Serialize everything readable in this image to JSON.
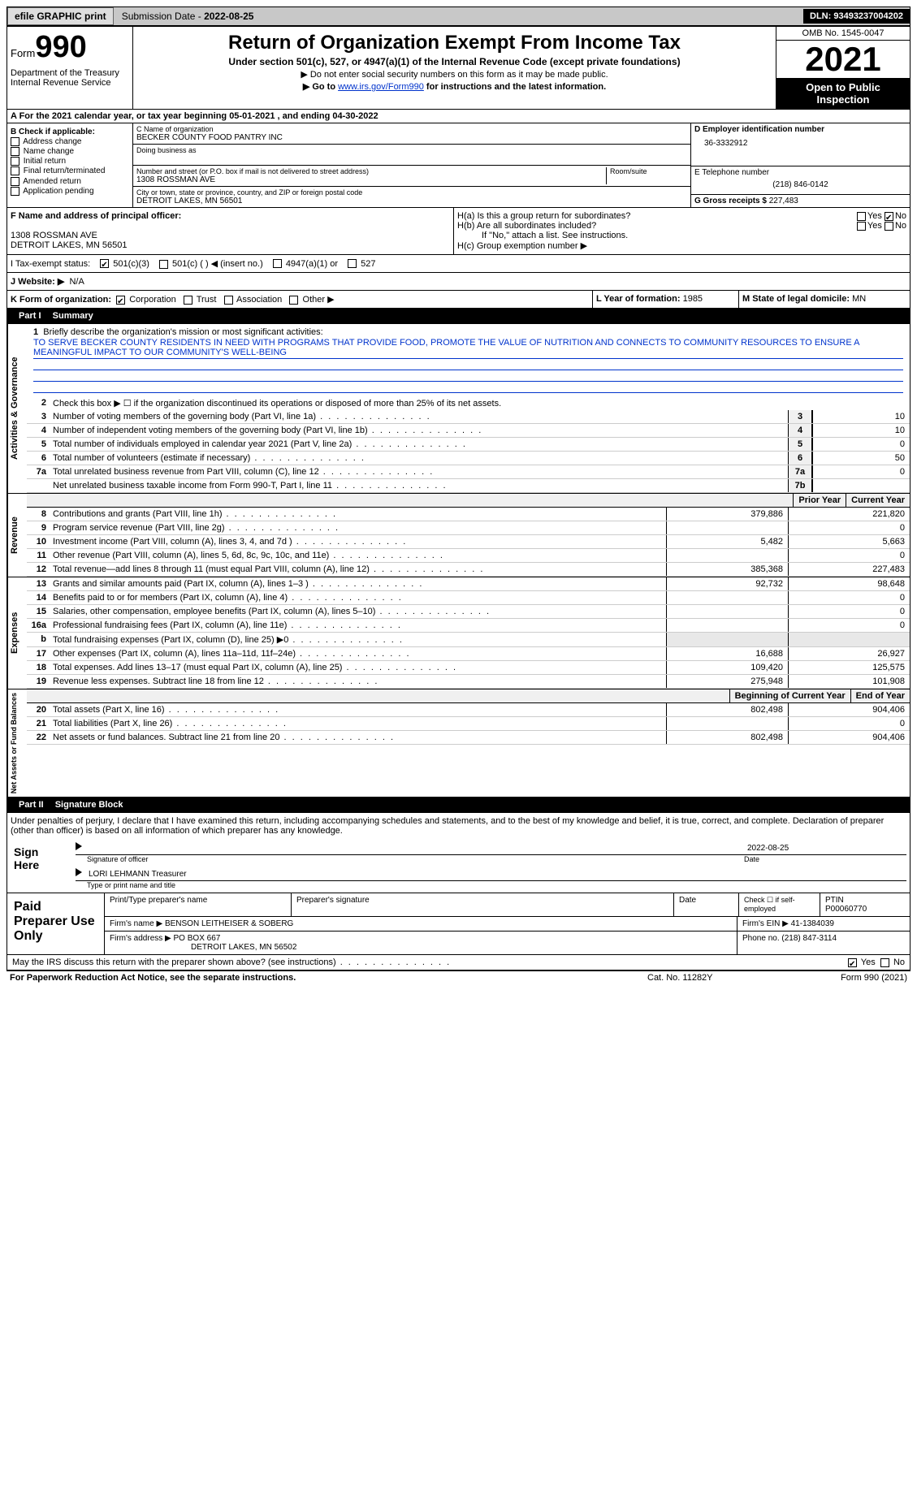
{
  "topbar": {
    "efile": "efile GRAPHIC print",
    "sub_lbl": "Submission Date - ",
    "sub_date": "2022-08-25",
    "dln_lbl": "DLN:",
    "dln": "93493237004202"
  },
  "header": {
    "form_lbl": "Form",
    "form_num": "990",
    "dept": "Department of the Treasury\nInternal Revenue Service",
    "title": "Return of Organization Exempt From Income Tax",
    "sub": "Under section 501(c), 527, or 4947(a)(1) of the Internal Revenue Code (except private foundations)",
    "note1": "▶ Do not enter social security numbers on this form as it may be made public.",
    "note2_pre": "▶ Go to ",
    "note2_link": "www.irs.gov/Form990",
    "note2_post": " for instructions and the latest information.",
    "omb": "OMB No. 1545-0047",
    "year": "2021",
    "inspect": "Open to Public Inspection"
  },
  "rowA": "A For the 2021 calendar year, or tax year beginning 05-01-2021   , and ending 04-30-2022",
  "colB": {
    "hdr": "B Check if applicable:",
    "items": [
      "Address change",
      "Name change",
      "Initial return",
      "Final return/terminated",
      "Amended return",
      "Application pending"
    ]
  },
  "colC": {
    "name_lbl": "C Name of organization",
    "name": "BECKER COUNTY FOOD PANTRY INC",
    "dba_lbl": "Doing business as",
    "addr_lbl": "Number and street (or P.O. box if mail is not delivered to street address)",
    "room_lbl": "Room/suite",
    "addr": "1308 ROSSMAN AVE",
    "city_lbl": "City or town, state or province, country, and ZIP or foreign postal code",
    "city": "DETROIT LAKES, MN  56501"
  },
  "colD": {
    "ein_lbl": "D Employer identification number",
    "ein": "36-3332912",
    "tel_lbl": "E Telephone number",
    "tel": "(218) 846-0142",
    "gross_lbl": "G Gross receipts $",
    "gross": "227,483"
  },
  "rowF": {
    "lbl": "F  Name and address of principal officer:",
    "addr1": "1308 ROSSMAN AVE",
    "addr2": "DETROIT LAKES, MN  56501"
  },
  "rowH": {
    "ha": "H(a)  Is this a group return for subordinates?",
    "hb": "H(b)  Are all subordinates included?",
    "hb_note": "If \"No,\" attach a list. See instructions.",
    "hc": "H(c)  Group exemption number ▶",
    "yes": "Yes",
    "no": "No"
  },
  "taxExempt": {
    "lbl": "I  Tax-exempt status:",
    "c3": "501(c)(3)",
    "c": "501(c) (  ) ◀ (insert no.)",
    "a1": "4947(a)(1) or",
    "527": "527"
  },
  "rowJ": {
    "lbl": "J  Website: ▶",
    "val": "N/A"
  },
  "rowK": {
    "lbl": "K Form of organization:",
    "corp": "Corporation",
    "trust": "Trust",
    "assoc": "Association",
    "other": "Other ▶",
    "year_lbl": "L Year of formation:",
    "year": "1985",
    "state_lbl": "M State of legal domicile:",
    "state": "MN"
  },
  "partI": {
    "hdr_part": "Part I",
    "hdr_title": "Summary",
    "line1_lbl": "Briefly describe the organization's mission or most significant activities:",
    "mission": "TO SERVE BECKER COUNTY RESIDENTS IN NEED WITH PROGRAMS THAT PROVIDE FOOD, PROMOTE THE VALUE OF NUTRITION AND CONNECTS TO COMMUNITY RESOURCES TO ENSURE A MEANINGFUL IMPACT TO OUR COMMUNITY'S WELL-BEING",
    "line2": "Check this box ▶ ☐  if the organization discontinued its operations or disposed of more than 25% of its net assets.",
    "vlabels": {
      "ag": "Activities & Governance",
      "rev": "Revenue",
      "exp": "Expenses",
      "net": "Net Assets or Fund Balances"
    },
    "lines_single": [
      {
        "n": "3",
        "d": "Number of voting members of the governing body (Part VI, line 1a)",
        "b": "3",
        "v": "10"
      },
      {
        "n": "4",
        "d": "Number of independent voting members of the governing body (Part VI, line 1b)",
        "b": "4",
        "v": "10"
      },
      {
        "n": "5",
        "d": "Total number of individuals employed in calendar year 2021 (Part V, line 2a)",
        "b": "5",
        "v": "0"
      },
      {
        "n": "6",
        "d": "Total number of volunteers (estimate if necessary)",
        "b": "6",
        "v": "50"
      },
      {
        "n": "7a",
        "d": "Total unrelated business revenue from Part VIII, column (C), line 12",
        "b": "7a",
        "v": "0"
      },
      {
        "n": "",
        "d": "Net unrelated business taxable income from Form 990-T, Part I, line 11",
        "b": "7b",
        "v": ""
      }
    ],
    "col_hdrs": {
      "prior": "Prior Year",
      "current": "Current Year",
      "beg": "Beginning of Current Year",
      "end": "End of Year"
    },
    "lines_rev": [
      {
        "n": "8",
        "d": "Contributions and grants (Part VIII, line 1h)",
        "p": "379,886",
        "c": "221,820"
      },
      {
        "n": "9",
        "d": "Program service revenue (Part VIII, line 2g)",
        "p": "",
        "c": "0"
      },
      {
        "n": "10",
        "d": "Investment income (Part VIII, column (A), lines 3, 4, and 7d )",
        "p": "5,482",
        "c": "5,663"
      },
      {
        "n": "11",
        "d": "Other revenue (Part VIII, column (A), lines 5, 6d, 8c, 9c, 10c, and 11e)",
        "p": "",
        "c": "0"
      },
      {
        "n": "12",
        "d": "Total revenue—add lines 8 through 11 (must equal Part VIII, column (A), line 12)",
        "p": "385,368",
        "c": "227,483"
      }
    ],
    "lines_exp": [
      {
        "n": "13",
        "d": "Grants and similar amounts paid (Part IX, column (A), lines 1–3 )",
        "p": "92,732",
        "c": "98,648"
      },
      {
        "n": "14",
        "d": "Benefits paid to or for members (Part IX, column (A), line 4)",
        "p": "",
        "c": "0"
      },
      {
        "n": "15",
        "d": "Salaries, other compensation, employee benefits (Part IX, column (A), lines 5–10)",
        "p": "",
        "c": "0"
      },
      {
        "n": "16a",
        "d": "Professional fundraising fees (Part IX, column (A), line 11e)",
        "p": "",
        "c": "0"
      },
      {
        "n": "b",
        "d": "Total fundraising expenses (Part IX, column (D), line 25) ▶0",
        "p": "GRAY",
        "c": "GRAY"
      },
      {
        "n": "17",
        "d": "Other expenses (Part IX, column (A), lines 11a–11d, 11f–24e)",
        "p": "16,688",
        "c": "26,927"
      },
      {
        "n": "18",
        "d": "Total expenses. Add lines 13–17 (must equal Part IX, column (A), line 25)",
        "p": "109,420",
        "c": "125,575"
      },
      {
        "n": "19",
        "d": "Revenue less expenses. Subtract line 18 from line 12",
        "p": "275,948",
        "c": "101,908"
      }
    ],
    "lines_net": [
      {
        "n": "20",
        "d": "Total assets (Part X, line 16)",
        "p": "802,498",
        "c": "904,406"
      },
      {
        "n": "21",
        "d": "Total liabilities (Part X, line 26)",
        "p": "",
        "c": "0"
      },
      {
        "n": "22",
        "d": "Net assets or fund balances. Subtract line 21 from line 20",
        "p": "802,498",
        "c": "904,406"
      }
    ]
  },
  "partII": {
    "hdr_part": "Part II",
    "hdr_title": "Signature Block",
    "decl": "Under penalties of perjury, I declare that I have examined this return, including accompanying schedules and statements, and to the best of my knowledge and belief, it is true, correct, and complete. Declaration of preparer (other than officer) is based on all information of which preparer has any knowledge.",
    "sign_here": "Sign Here",
    "sig_officer": "Signature of officer",
    "sig_date": "2022-08-25",
    "date_lbl": "Date",
    "name_title": "LORI LEHMANN  Treasurer",
    "type_lbl": "Type or print name and title"
  },
  "prep": {
    "lbl": "Paid Preparer Use Only",
    "h_name": "Print/Type preparer's name",
    "h_sig": "Preparer's signature",
    "h_date": "Date",
    "h_check": "Check ☐ if self-employed",
    "h_ptin": "PTIN",
    "ptin": "P00060770",
    "firm_name_lbl": "Firm's name      ▶",
    "firm_name": "BENSON LEITHEISER & SOBERG",
    "firm_ein_lbl": "Firm's EIN ▶",
    "firm_ein": "41-1384039",
    "firm_addr_lbl": "Firm's address ▶",
    "firm_addr": "PO BOX 667",
    "firm_city": "DETROIT LAKES, MN  56502",
    "phone_lbl": "Phone no.",
    "phone": "(218) 847-3114"
  },
  "discuss": {
    "q": "May the IRS discuss this return with the preparer shown above? (see instructions)",
    "yes": "Yes",
    "no": "No"
  },
  "footer": {
    "l": "For Paperwork Reduction Act Notice, see the separate instructions.",
    "m": "Cat. No. 11282Y",
    "r": "Form 990 (2021)"
  }
}
